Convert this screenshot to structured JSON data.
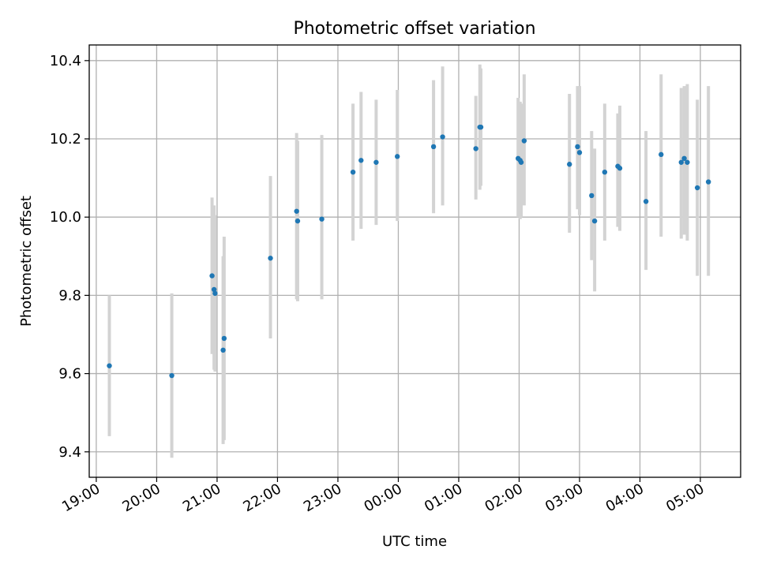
{
  "chart_data": {
    "type": "scatter",
    "title": "Photometric offset variation",
    "xlabel": "UTC time",
    "ylabel": "Photometric offset",
    "x_tick_labels": [
      "19:00",
      "20:00",
      "21:00",
      "22:00",
      "23:00",
      "00:00",
      "01:00",
      "02:00",
      "03:00",
      "04:00",
      "05:00"
    ],
    "y_tick_labels": [
      "9.4",
      "9.6",
      "9.8",
      "10.0",
      "10.2",
      "10.4"
    ],
    "xlim": [
      "18:53",
      "05:40"
    ],
    "ylim": [
      9.335,
      10.44
    ],
    "grid": true,
    "colors": {
      "point": "#1f77b4",
      "errorbar": "#d3d3d3"
    },
    "series": [
      {
        "points": [
          {
            "t": "19:13",
            "y": 9.62,
            "lo": 9.44,
            "hi": 9.8
          },
          {
            "t": "20:15",
            "y": 9.595,
            "lo": 9.385,
            "hi": 9.805
          },
          {
            "t": "20:55",
            "y": 9.85,
            "lo": 9.65,
            "hi": 10.05
          },
          {
            "t": "20:57",
            "y": 9.815,
            "lo": 9.61,
            "hi": 10.03
          },
          {
            "t": "20:58",
            "y": 9.805,
            "lo": 9.605,
            "hi": 10.005
          },
          {
            "t": "21:06",
            "y": 9.66,
            "lo": 9.42,
            "hi": 9.9
          },
          {
            "t": "21:07",
            "y": 9.69,
            "lo": 9.43,
            "hi": 9.95
          },
          {
            "t": "21:53",
            "y": 9.895,
            "lo": 9.69,
            "hi": 10.105
          },
          {
            "t": "22:19",
            "y": 10.015,
            "lo": 9.79,
            "hi": 10.215
          },
          {
            "t": "22:20",
            "y": 9.99,
            "lo": 9.785,
            "hi": 10.195
          },
          {
            "t": "22:44",
            "y": 9.995,
            "lo": 9.79,
            "hi": 10.21
          },
          {
            "t": "23:15",
            "y": 10.115,
            "lo": 9.94,
            "hi": 10.29
          },
          {
            "t": "23:23",
            "y": 10.145,
            "lo": 9.97,
            "hi": 10.32
          },
          {
            "t": "23:38",
            "y": 10.14,
            "lo": 9.98,
            "hi": 10.3
          },
          {
            "t": "23:59",
            "y": 10.155,
            "lo": 9.99,
            "hi": 10.325
          },
          {
            "t": "00:35",
            "y": 10.18,
            "lo": 10.01,
            "hi": 10.35
          },
          {
            "t": "00:44",
            "y": 10.205,
            "lo": 10.03,
            "hi": 10.385
          },
          {
            "t": "01:17",
            "y": 10.175,
            "lo": 10.045,
            "hi": 10.31
          },
          {
            "t": "01:21",
            "y": 10.23,
            "lo": 10.07,
            "hi": 10.39
          },
          {
            "t": "01:22",
            "y": 10.23,
            "lo": 10.08,
            "hi": 10.38
          },
          {
            "t": "01:59",
            "y": 10.15,
            "lo": 10.0,
            "hi": 10.305
          },
          {
            "t": "02:01",
            "y": 10.145,
            "lo": 9.995,
            "hi": 10.295
          },
          {
            "t": "02:02",
            "y": 10.14,
            "lo": 10.0,
            "hi": 10.29
          },
          {
            "t": "02:05",
            "y": 10.195,
            "lo": 10.03,
            "hi": 10.365
          },
          {
            "t": "02:50",
            "y": 10.135,
            "lo": 9.96,
            "hi": 10.315
          },
          {
            "t": "02:58",
            "y": 10.18,
            "lo": 10.02,
            "hi": 10.335
          },
          {
            "t": "03:00",
            "y": 10.165,
            "lo": 10.005,
            "hi": 10.335
          },
          {
            "t": "03:12",
            "y": 10.055,
            "lo": 9.89,
            "hi": 10.22
          },
          {
            "t": "03:15",
            "y": 9.99,
            "lo": 9.81,
            "hi": 10.175
          },
          {
            "t": "03:25",
            "y": 10.115,
            "lo": 9.94,
            "hi": 10.29
          },
          {
            "t": "03:38",
            "y": 10.13,
            "lo": 9.975,
            "hi": 10.265
          },
          {
            "t": "03:40",
            "y": 10.125,
            "lo": 9.965,
            "hi": 10.285
          },
          {
            "t": "04:06",
            "y": 10.04,
            "lo": 9.865,
            "hi": 10.22
          },
          {
            "t": "04:21",
            "y": 10.16,
            "lo": 9.95,
            "hi": 10.365
          },
          {
            "t": "04:41",
            "y": 10.14,
            "lo": 9.945,
            "hi": 10.33
          },
          {
            "t": "04:44",
            "y": 10.15,
            "lo": 9.955,
            "hi": 10.335
          },
          {
            "t": "04:47",
            "y": 10.14,
            "lo": 9.94,
            "hi": 10.34
          },
          {
            "t": "04:57",
            "y": 10.075,
            "lo": 9.85,
            "hi": 10.3
          },
          {
            "t": "05:08",
            "y": 10.09,
            "lo": 9.85,
            "hi": 10.335
          }
        ]
      }
    ]
  }
}
